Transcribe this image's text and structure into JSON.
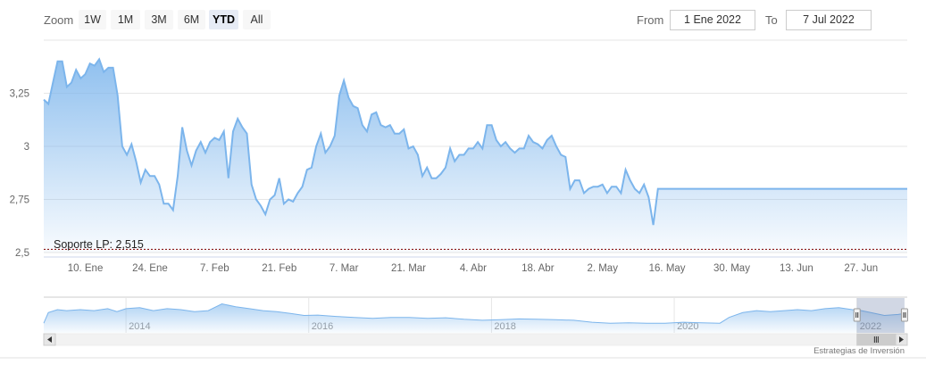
{
  "toolbar": {
    "zoom_label": "Zoom",
    "zoom_buttons": [
      "1W",
      "1M",
      "3M",
      "6M",
      "YTD",
      "All"
    ],
    "active_zoom": "YTD",
    "from_label": "From",
    "from_value": "1 Ene 2022",
    "to_label": "To",
    "to_value": "7 Jul 2022"
  },
  "credit": "Estrategias de Inversión",
  "colors": {
    "line": "#7cb5ec",
    "support_line": "#8b1a1a",
    "grid": "#e6e6e6"
  },
  "chart_data": {
    "type": "area",
    "y_ticks": [
      "2,5",
      "2,75",
      "3",
      "3,25"
    ],
    "y_tick_values": [
      2.5,
      2.75,
      3.0,
      3.25
    ],
    "ylim": [
      2.5,
      3.5
    ],
    "x_ticks": [
      "10. Ene",
      "24. Ene",
      "7. Feb",
      "21. Feb",
      "7. Mar",
      "21. Mar",
      "4. Abr",
      "18. Abr",
      "2. May",
      "16. May",
      "30. May",
      "13. Jun",
      "27. Jun"
    ],
    "x_tick_days": [
      9,
      23,
      37,
      51,
      65,
      79,
      93,
      107,
      121,
      135,
      149,
      163,
      177
    ],
    "xlim_days": [
      0,
      187
    ],
    "x_unit": "días desde 1 Ene 2022",
    "plot_band_label": "Soporte LP: 2,515",
    "plot_band_value": 2.515,
    "series": [
      {
        "x": [
          0,
          1,
          2,
          3,
          4,
          5,
          6,
          7,
          8,
          9,
          10,
          11,
          12,
          13,
          14,
          15,
          16,
          17,
          18,
          19,
          20,
          21,
          22,
          23,
          24,
          25,
          26,
          27,
          28,
          29,
          30,
          31,
          32,
          33,
          34,
          35,
          36,
          37,
          38,
          39,
          40,
          41,
          42,
          43,
          44,
          45,
          46,
          47,
          48,
          49,
          50,
          51,
          52,
          53,
          54,
          55,
          56,
          57,
          58,
          59,
          60,
          61,
          62,
          63,
          64,
          65,
          66,
          67,
          68,
          69,
          70,
          71,
          72,
          73,
          74,
          75,
          76,
          77,
          78,
          79,
          80,
          81,
          82,
          83,
          84,
          85,
          86,
          87,
          88,
          89,
          90,
          91,
          92,
          93,
          94,
          95,
          96,
          97,
          98,
          99,
          100,
          101,
          102,
          103,
          104,
          105,
          106,
          107,
          108,
          109,
          110,
          111,
          112,
          113,
          114,
          115,
          116,
          117,
          118,
          119,
          120,
          121,
          122,
          123,
          124,
          125,
          126,
          127,
          128,
          129,
          130,
          131,
          132,
          133,
          134,
          135,
          136,
          137,
          138,
          139,
          140,
          141,
          142,
          143,
          144,
          145,
          146,
          147,
          148,
          149,
          150,
          151,
          152,
          153,
          154,
          155,
          156,
          157,
          158,
          159,
          160,
          161,
          162,
          163,
          164,
          165,
          166,
          167,
          168,
          169,
          170,
          171,
          172,
          173,
          174,
          175,
          176,
          177,
          178,
          179,
          180,
          181,
          182,
          183,
          184,
          185,
          186,
          187
        ],
        "values": [
          3.22,
          3.2,
          3.3,
          3.4,
          3.4,
          3.28,
          3.3,
          3.36,
          3.32,
          3.34,
          3.39,
          3.38,
          3.41,
          3.35,
          3.37,
          3.37,
          3.24,
          3.0,
          2.96,
          3.01,
          2.93,
          2.83,
          2.89,
          2.86,
          2.86,
          2.82,
          2.73,
          2.73,
          2.7,
          2.86,
          3.09,
          2.98,
          2.91,
          2.98,
          3.02,
          2.97,
          3.02,
          3.04,
          3.03,
          3.07,
          2.85,
          3.07,
          3.13,
          3.09,
          3.06,
          2.82,
          2.75,
          2.72,
          2.68,
          2.75,
          2.77,
          2.85,
          2.73,
          2.75,
          2.74,
          2.78,
          2.81,
          2.89,
          2.9,
          3.0,
          3.06,
          2.97,
          3.0,
          3.05,
          3.24,
          3.31,
          3.23,
          3.19,
          3.18,
          3.1,
          3.07,
          3.15,
          3.16,
          3.1,
          3.09,
          3.1,
          3.06,
          3.06,
          3.08,
          2.99,
          3.0,
          2.96,
          2.86,
          2.9,
          2.85,
          2.85,
          2.87,
          2.9,
          2.99,
          2.93,
          2.96,
          2.96,
          2.99,
          2.99,
          3.02,
          2.99,
          3.1,
          3.1,
          3.03,
          3.0,
          3.02,
          2.99,
          2.97,
          2.99,
          2.99,
          3.05,
          3.02,
          3.01,
          2.99,
          3.03,
          3.05,
          3.0,
          2.96,
          2.95,
          2.8,
          2.84,
          2.84,
          2.78,
          2.8,
          2.81,
          2.81,
          2.82,
          2.78,
          2.81,
          2.81,
          2.78,
          2.89,
          2.84,
          2.8,
          2.78,
          2.82,
          2.76,
          2.63,
          2.8,
          2.8,
          2.8,
          2.8,
          2.8,
          2.8,
          2.8,
          2.8,
          2.8,
          2.8,
          2.8,
          2.8,
          2.8,
          2.8,
          2.8,
          2.8,
          2.8,
          2.8,
          2.8,
          2.8,
          2.8,
          2.8,
          2.8,
          2.8,
          2.8,
          2.8,
          2.8,
          2.8,
          2.8,
          2.8,
          2.8,
          2.8,
          2.8,
          2.8,
          2.8,
          2.8,
          2.8,
          2.8,
          2.8,
          2.8,
          2.8,
          2.8,
          2.8,
          2.8,
          2.8,
          2.8,
          2.8,
          2.8,
          2.8,
          2.8,
          2.8,
          2.8,
          2.8,
          2.8,
          2.8
        ]
      }
    ],
    "navigator": {
      "x_ticks": [
        "2014",
        "2016",
        "2018",
        "2020",
        "2022"
      ],
      "x_tick_years": [
        2014,
        2016,
        2018,
        2020,
        2022
      ],
      "xlim_years": [
        2013.1,
        2022.55
      ],
      "series": [
        {
          "x": [
            2013.1,
            2013.15,
            2013.25,
            2013.35,
            2013.5,
            2013.65,
            2013.8,
            2013.9,
            2014.0,
            2014.15,
            2014.3,
            2014.45,
            2014.6,
            2014.75,
            2014.9,
            2015.05,
            2015.2,
            2015.35,
            2015.5,
            2015.65,
            2015.8,
            2015.95,
            2016.1,
            2016.3,
            2016.5,
            2016.7,
            2016.9,
            2017.1,
            2017.3,
            2017.5,
            2017.7,
            2017.9,
            2018.1,
            2018.3,
            2018.5,
            2018.7,
            2018.9,
            2019.1,
            2019.3,
            2019.5,
            2019.7,
            2019.9,
            2020.1,
            2020.3,
            2020.5,
            2020.6,
            2020.75,
            2020.9,
            2021.05,
            2021.2,
            2021.35,
            2021.5,
            2021.65,
            2021.8,
            2021.95,
            2022.05,
            2022.15,
            2022.3,
            2022.45,
            2022.52
          ],
          "values": [
            2.3,
            2.85,
            3.0,
            2.95,
            3.0,
            2.95,
            3.05,
            2.9,
            3.05,
            3.1,
            2.95,
            3.05,
            3.0,
            2.9,
            2.95,
            3.3,
            3.15,
            3.05,
            2.95,
            2.9,
            2.8,
            2.7,
            2.72,
            2.65,
            2.6,
            2.55,
            2.6,
            2.6,
            2.55,
            2.58,
            2.5,
            2.45,
            2.48,
            2.52,
            2.5,
            2.48,
            2.45,
            2.35,
            2.3,
            2.32,
            2.3,
            2.3,
            2.35,
            2.32,
            2.3,
            2.6,
            2.85,
            2.95,
            2.9,
            2.95,
            3.0,
            2.95,
            3.05,
            3.1,
            3.0,
            2.95,
            2.85,
            2.7,
            2.75,
            2.8
          ]
        }
      ],
      "window_years": [
        2022.0,
        2022.52
      ]
    }
  }
}
